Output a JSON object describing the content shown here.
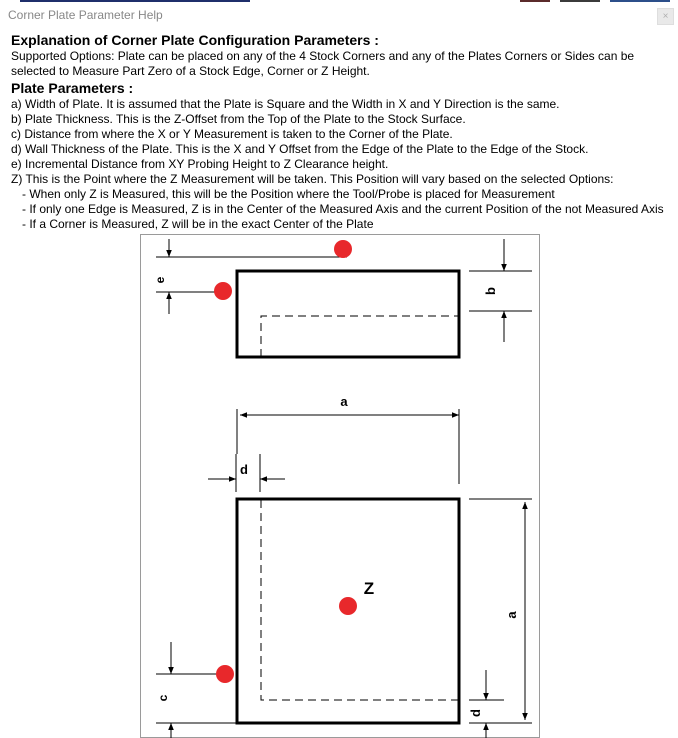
{
  "window": {
    "title": "Corner Plate Parameter Help",
    "close_glyph": "×"
  },
  "topstrip_colors": [
    "#1f2f6b",
    "#5b2b2b",
    "#3b3b3b",
    "#2c4f8a"
  ],
  "help": {
    "heading": "Explanation of Corner Plate Configuration Parameters :",
    "supported_line1": "Supported Options: Plate can be placed on any of the 4 Stock Corners and any of the Plates Corners or Sides can be",
    "supported_line2": "selected to Measure Part Zero of a Stock Edge, Corner or Z Height.",
    "params_heading": "Plate Parameters :",
    "param_a": "a) Width of Plate. It is assumed that the Plate is Square and the Width in X and Y Direction is the same.",
    "param_b": "b) Plate Thickness. This is the Z-Offset from the Top of the Plate to the Stock Surface.",
    "param_c": "c) Distance from where the X or Y Measurement is taken to the Corner of the Plate.",
    "param_d": "d) Wall Thickness of the Plate. This is the X and Y Offset from the Edge of the Plate to the Edge of the Stock.",
    "param_e": "e) Incremental Distance from XY Probing Height to Z Clearance height.",
    "param_z": "Z) This is the Point where the Z Measurement will be taken. This Position will vary based on the selected Options:",
    "z_opt1": "- When only Z is Measured, this will be the Position where the Tool/Probe is placed for Measurement",
    "z_opt2": "- If only one Edge is Measured, Z is in the Center of the Measured Axis and the current Position of the not Measured Axis",
    "z_opt3": "- If a Corner is Measured, Z will be in the exact Center of the Plate"
  },
  "diagram": {
    "labels": {
      "a_top": "a",
      "a_right": "a",
      "b": "b",
      "c": "c",
      "d_top": "d",
      "d_bottom": "d",
      "e": "e",
      "z": "Z"
    },
    "probe_color": "#e8282b"
  }
}
